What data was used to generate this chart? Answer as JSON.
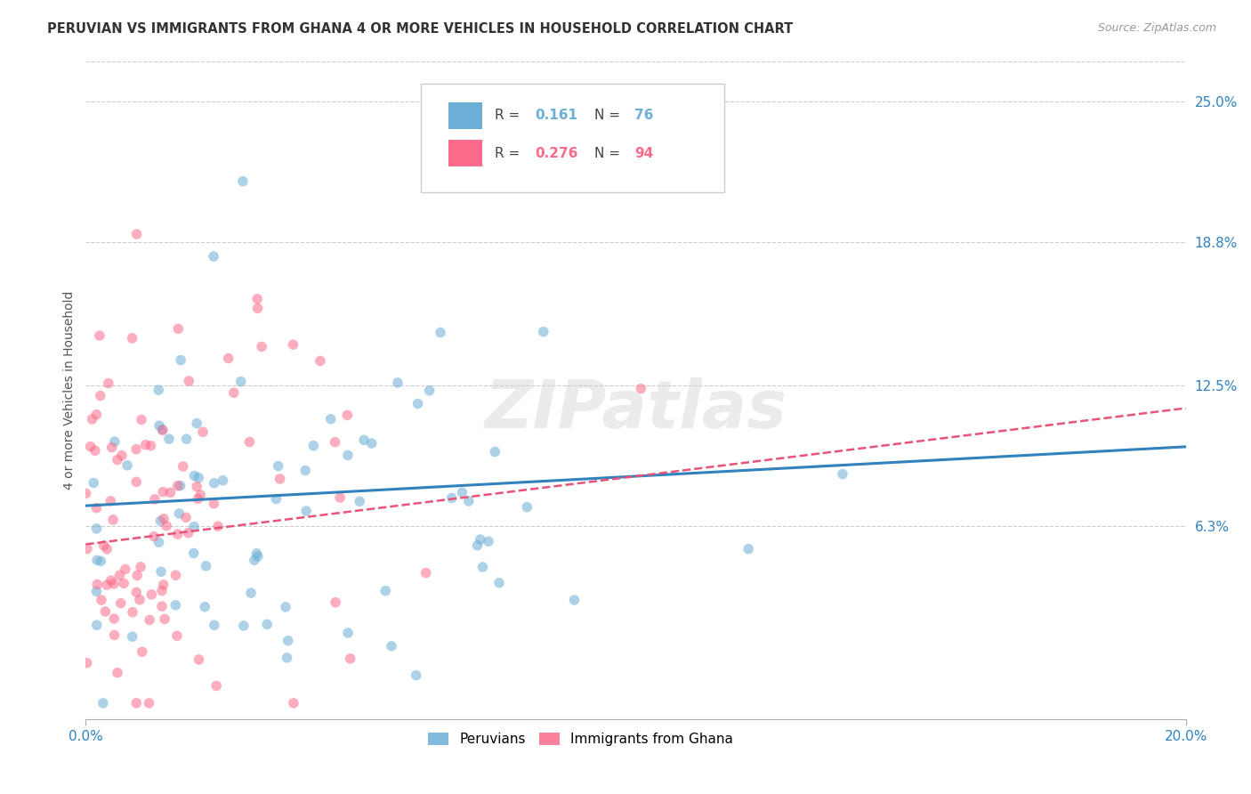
{
  "title": "PERUVIAN VS IMMIGRANTS FROM GHANA 4 OR MORE VEHICLES IN HOUSEHOLD CORRELATION CHART",
  "source": "Source: ZipAtlas.com",
  "ylabel": "4 or more Vehicles in Household",
  "watermark": "ZIPatlas",
  "peruvian_color": "#6baed6",
  "ghana_color": "#fb6a8a",
  "peruvian_line_color": "#3182bd",
  "ghana_line_color": "#e8537a",
  "grid_color": "#cccccc",
  "background_color": "#ffffff",
  "scatter_alpha": 0.55,
  "scatter_size": 70,
  "title_fontsize": 10.5,
  "source_fontsize": 9,
  "tick_label_color": "#3182bd",
  "xmin": 0.0,
  "xmax": 0.2,
  "ymin": -0.022,
  "ymax": 0.268,
  "ylabel_values": [
    0.063,
    0.125,
    0.188,
    0.25
  ],
  "ylabel_ticks": [
    "6.3%",
    "12.5%",
    "18.8%",
    "25.0%"
  ],
  "peruvian_N": 76,
  "ghana_N": 94,
  "peruvian_line_start_y": 0.072,
  "peruvian_line_end_y": 0.098,
  "ghana_line_start_y": 0.055,
  "ghana_line_end_y": 0.115
}
